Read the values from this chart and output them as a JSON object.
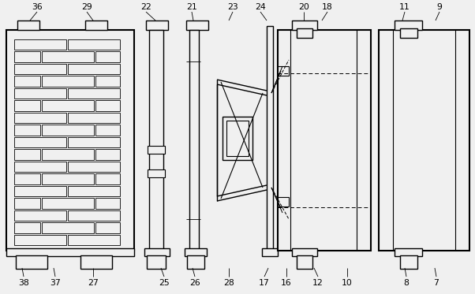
{
  "bg": "#f0f0f0",
  "lc": "#000000",
  "fig_w": 6.02,
  "fig_h": 3.73,
  "dpi": 100
}
